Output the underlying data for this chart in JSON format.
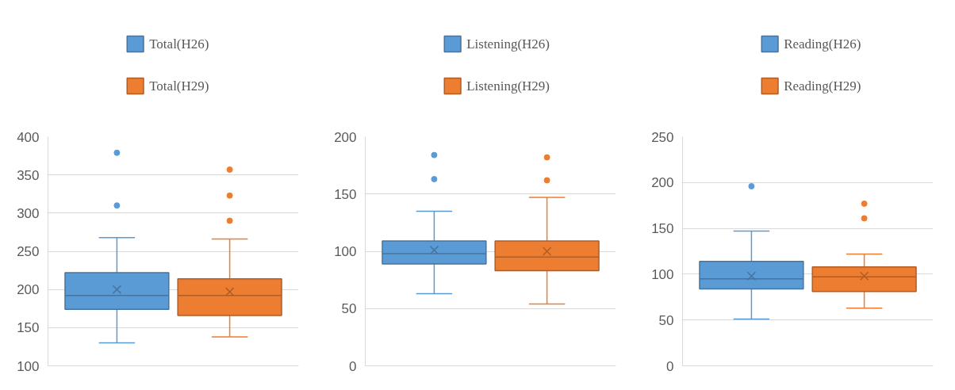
{
  "chart_data": [
    {
      "type": "box",
      "categories": [
        null
      ],
      "ylim": [
        100,
        400
      ],
      "yticks": [
        100,
        150,
        200,
        250,
        300,
        350,
        400
      ],
      "grid": "y",
      "legend": "top",
      "tick_labels": "y",
      "series": [
        {
          "name": "Total(H26)",
          "color": "#5b9bd5",
          "boxes": [
            {
              "low": 130,
              "q1": 174,
              "median": 192,
              "q3": 222,
              "high": 268,
              "mean": 200,
              "outliers": [
                379,
                310
              ]
            }
          ]
        },
        {
          "name": "Total(H29)",
          "color": "#ed7d31",
          "boxes": [
            {
              "low": 138,
              "q1": 166,
              "median": 192,
              "q3": 214,
              "high": 266,
              "mean": 197,
              "outliers": [
                357,
                323,
                290
              ]
            }
          ]
        }
      ]
    },
    {
      "type": "box",
      "categories": [
        null
      ],
      "ylim": [
        0,
        200
      ],
      "yticks": [
        0,
        50,
        100,
        150,
        200
      ],
      "grid": "y",
      "legend": "top",
      "tick_labels": "y",
      "series": [
        {
          "name": "Listening(H26)",
          "color": "#5b9bd5",
          "boxes": [
            {
              "low": 63,
              "q1": 89,
              "median": 98,
              "q3": 109,
              "high": 135,
              "mean": 101,
              "outliers": [
                184,
                163
              ]
            }
          ]
        },
        {
          "name": "Listening(H29)",
          "color": "#ed7d31",
          "boxes": [
            {
              "low": 54,
              "q1": 83,
              "median": 95,
              "q3": 109,
              "high": 147,
              "mean": 100,
              "outliers": [
                182,
                162
              ]
            }
          ]
        }
      ]
    },
    {
      "type": "box",
      "categories": [
        null
      ],
      "ylim": [
        0,
        250
      ],
      "yticks": [
        0,
        50,
        100,
        150,
        200,
        250
      ],
      "grid": "y",
      "legend": "top",
      "tick_labels": "y",
      "series": [
        {
          "name": "Reading(H26)",
          "color": "#5b9bd5",
          "boxes": [
            {
              "low": 51,
              "q1": 84,
              "median": 95,
              "q3": 114,
              "high": 147,
              "mean": 98,
              "outliers": [
                196
              ]
            }
          ]
        },
        {
          "name": "Reading(H29)",
          "color": "#ed7d31",
          "boxes": [
            {
              "low": 63,
              "q1": 81,
              "median": 97,
              "q3": 108,
              "high": 122,
              "mean": 98,
              "outliers": [
                177,
                161
              ]
            }
          ]
        }
      ]
    }
  ]
}
